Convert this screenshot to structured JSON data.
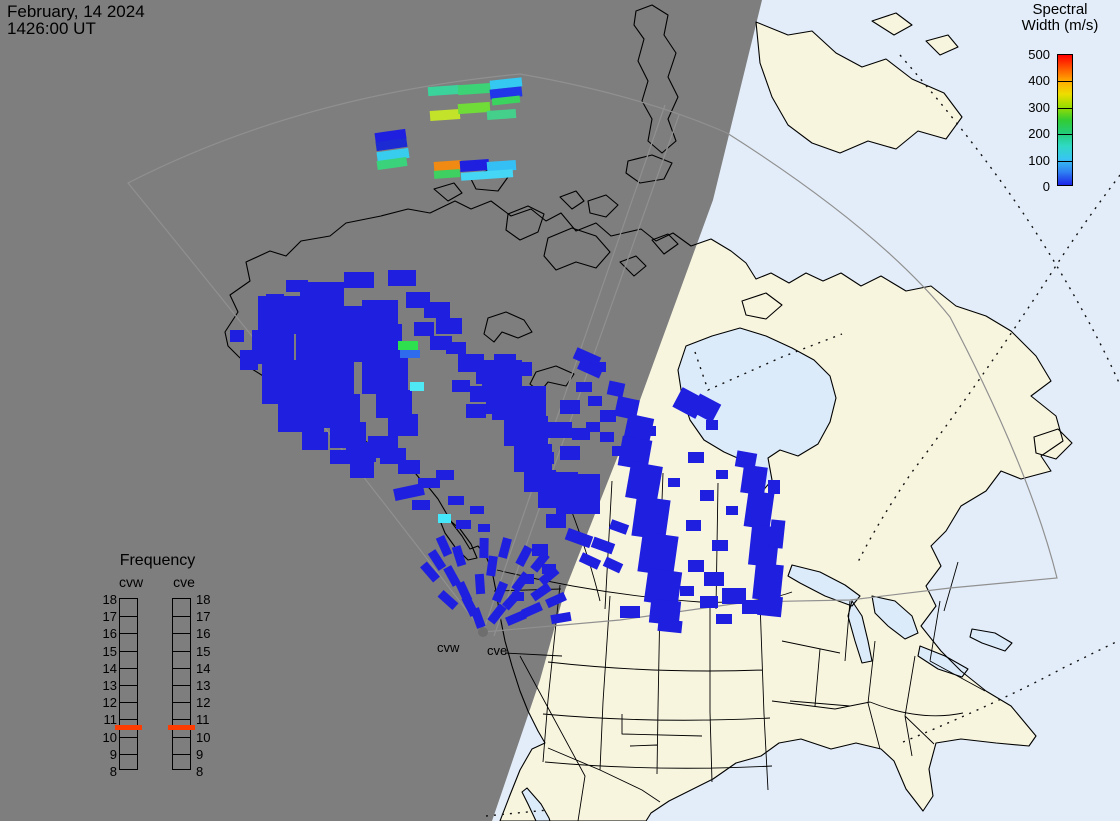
{
  "header": {
    "date": "February, 14 2024",
    "time": "1426:00 UT"
  },
  "colorbar": {
    "title_line1": "Spectral",
    "title_line2": "Width (m/s)",
    "ticks": [
      "500",
      "400",
      "300",
      "200",
      "100",
      "0"
    ],
    "gradient": [
      "#ff0000",
      "#ff5500",
      "#ffaa00",
      "#eedd00",
      "#99dd00",
      "#33cc33",
      "#22cc77",
      "#2fd9c4",
      "#38c4f2",
      "#2f80f2",
      "#1c24e8"
    ]
  },
  "frequency_panel": {
    "title": "Frequency",
    "left_label": "cvw",
    "right_label": "cve",
    "ticks": [
      "18",
      "17",
      "16",
      "15",
      "14",
      "13",
      "12",
      "11",
      "10",
      "9",
      "8"
    ],
    "marker_between": [
      "11",
      "10"
    ],
    "marker_color": "#ff3c00"
  },
  "map_labels": {
    "radar_left": "cvw",
    "radar_right": "cve"
  },
  "colors": {
    "night_shade": "#7e7e7e",
    "day_land": "#f8f5df",
    "day_water": "#e3edf9",
    "lake_water": "#dcebfa",
    "echo_blue": "#1f1fe0",
    "fov_line": "#909090",
    "radar_dot": "#6e6e6e"
  },
  "chart_data": {
    "type": "heatmap",
    "title": "SuperDARN spectral width map, radars cvw / cve",
    "units": "m/s",
    "value_scale": {
      "min": 0,
      "max": 500
    },
    "cell_format": "x,y,w,h,rotation_deg,color(optional; default echo_blue)",
    "cells": [
      [
        428,
        86,
        32,
        9,
        -4,
        "#3bd39b"
      ],
      [
        458,
        84,
        34,
        10,
        -4,
        "#3cd276"
      ],
      [
        490,
        79,
        32,
        9,
        -6,
        "#35c8f0"
      ],
      [
        490,
        88,
        32,
        10,
        -6,
        "#2136e8"
      ],
      [
        492,
        97,
        28,
        7,
        -6,
        "#3bd45e"
      ],
      [
        430,
        110,
        30,
        10,
        -4,
        "#c3e32a"
      ],
      [
        458,
        103,
        32,
        10,
        -4,
        "#6fdc38"
      ],
      [
        487,
        110,
        29,
        9,
        -4,
        "#44d08a"
      ],
      [
        375,
        131,
        31,
        10,
        -8
      ],
      [
        376,
        140,
        31,
        9,
        -8,
        "#1b2ad2"
      ],
      [
        377,
        150,
        32,
        10,
        -8,
        "#38cdee"
      ],
      [
        377,
        159,
        30,
        9,
        -8,
        "#3bd27c"
      ],
      [
        434,
        161,
        27,
        10,
        -4,
        "#f08a12"
      ],
      [
        434,
        170,
        26,
        8,
        -4,
        "#3ed060"
      ],
      [
        460,
        160,
        29,
        11,
        -4
      ],
      [
        487,
        161,
        29,
        10,
        -4,
        "#35c0f5"
      ],
      [
        461,
        171,
        52,
        8,
        -4,
        "#45d5f5"
      ],
      [
        258,
        296,
        52,
        38
      ],
      [
        252,
        330,
        42,
        34
      ],
      [
        262,
        360,
        54,
        44
      ],
      [
        278,
        398,
        46,
        34
      ],
      [
        300,
        282,
        44,
        26
      ],
      [
        296,
        306,
        66,
        56
      ],
      [
        300,
        358,
        54,
        40
      ],
      [
        316,
        394,
        44,
        34
      ],
      [
        330,
        422,
        36,
        26
      ],
      [
        346,
        442,
        30,
        20
      ],
      [
        362,
        300,
        36,
        24
      ],
      [
        352,
        324,
        50,
        38
      ],
      [
        362,
        358,
        46,
        36
      ],
      [
        376,
        390,
        36,
        28
      ],
      [
        388,
        414,
        30,
        22
      ],
      [
        368,
        436,
        30,
        22
      ],
      [
        388,
        270,
        28,
        16
      ],
      [
        344,
        272,
        30,
        16
      ],
      [
        406,
        292,
        24,
        16
      ],
      [
        424,
        302,
        26,
        16
      ],
      [
        414,
        322,
        20,
        14
      ],
      [
        436,
        318,
        26,
        16
      ],
      [
        430,
        336,
        22,
        14
      ],
      [
        446,
        342,
        20,
        12
      ],
      [
        380,
        448,
        26,
        16
      ],
      [
        398,
        460,
        22,
        14
      ],
      [
        350,
        462,
        24,
        16
      ],
      [
        330,
        450,
        22,
        14
      ],
      [
        302,
        432,
        26,
        18
      ],
      [
        286,
        280,
        22,
        12
      ],
      [
        240,
        350,
        18,
        20
      ],
      [
        266,
        294,
        18,
        12
      ],
      [
        230,
        330,
        14,
        12
      ],
      [
        398,
        341,
        20,
        9,
        0,
        "#2ee04e"
      ],
      [
        400,
        350,
        20,
        8,
        0,
        "#2f6bed"
      ],
      [
        410,
        382,
        14,
        9,
        0,
        "#4fe9f5"
      ],
      [
        458,
        354,
        26,
        18
      ],
      [
        476,
        362,
        30,
        22
      ],
      [
        494,
        354,
        22,
        16
      ],
      [
        470,
        386,
        24,
        16
      ],
      [
        490,
        382,
        20,
        14
      ],
      [
        452,
        380,
        18,
        12
      ],
      [
        466,
        404,
        20,
        14
      ],
      [
        486,
        402,
        18,
        12
      ],
      [
        502,
        396,
        16,
        12
      ],
      [
        512,
        362,
        20,
        14
      ],
      [
        524,
        434,
        22,
        14
      ],
      [
        536,
        452,
        18,
        12
      ],
      [
        482,
        360,
        40,
        26
      ],
      [
        492,
        386,
        54,
        34
      ],
      [
        504,
        416,
        44,
        30
      ],
      [
        514,
        444,
        38,
        28
      ],
      [
        524,
        470,
        32,
        22
      ],
      [
        538,
        490,
        26,
        18
      ],
      [
        556,
        472,
        22,
        16
      ],
      [
        560,
        446,
        20,
        14
      ],
      [
        572,
        428,
        18,
        12
      ],
      [
        548,
        422,
        24,
        16
      ],
      [
        560,
        400,
        20,
        14
      ],
      [
        576,
        382,
        16,
        10
      ],
      [
        588,
        396,
        14,
        10
      ],
      [
        600,
        410,
        16,
        12
      ],
      [
        586,
        422,
        14,
        10
      ],
      [
        600,
        432,
        14,
        10
      ],
      [
        612,
        446,
        12,
        10
      ],
      [
        590,
        362,
        16,
        10
      ],
      [
        574,
        352,
        26,
        12,
        24
      ],
      [
        578,
        364,
        24,
        10,
        24
      ],
      [
        394,
        486,
        30,
        12,
        -12
      ],
      [
        418,
        478,
        22,
        10
      ],
      [
        436,
        470,
        18,
        10
      ],
      [
        412,
        500,
        18,
        10
      ],
      [
        448,
        496,
        16,
        9
      ],
      [
        438,
        514,
        13,
        9,
        0,
        "#45e8fa"
      ],
      [
        456,
        520,
        15,
        9
      ],
      [
        470,
        506,
        14,
        8
      ],
      [
        478,
        524,
        12,
        8
      ],
      [
        556,
        474,
        44,
        40
      ],
      [
        546,
        514,
        20,
        14
      ],
      [
        532,
        544,
        16,
        12
      ],
      [
        542,
        564,
        14,
        10
      ],
      [
        522,
        574,
        12,
        10
      ],
      [
        512,
        592,
        12,
        9
      ],
      [
        566,
        532,
        26,
        12,
        20
      ],
      [
        592,
        540,
        22,
        11,
        20
      ],
      [
        610,
        522,
        18,
        10,
        20
      ],
      [
        580,
        556,
        20,
        10,
        25
      ],
      [
        604,
        560,
        18,
        10,
        25
      ],
      [
        608,
        382,
        16,
        14,
        12
      ],
      [
        616,
        398,
        22,
        20,
        12
      ],
      [
        626,
        416,
        26,
        24,
        12
      ],
      [
        620,
        438,
        30,
        30,
        10
      ],
      [
        628,
        464,
        32,
        36,
        10
      ],
      [
        634,
        498,
        34,
        40,
        8
      ],
      [
        640,
        534,
        36,
        40,
        8
      ],
      [
        646,
        570,
        34,
        34,
        8
      ],
      [
        650,
        600,
        30,
        24,
        6
      ],
      [
        658,
        620,
        24,
        12,
        6
      ],
      [
        640,
        426,
        16,
        10
      ],
      [
        620,
        606,
        20,
        12
      ],
      [
        736,
        452,
        20,
        16,
        10
      ],
      [
        742,
        466,
        24,
        28,
        8
      ],
      [
        746,
        492,
        26,
        36,
        8
      ],
      [
        750,
        526,
        28,
        40,
        6
      ],
      [
        754,
        564,
        28,
        36,
        6
      ],
      [
        758,
        596,
        24,
        20,
        6
      ],
      [
        770,
        520,
        14,
        28,
        6
      ],
      [
        768,
        480,
        12,
        14
      ],
      [
        688,
        560,
        16,
        12
      ],
      [
        704,
        572,
        20,
        14
      ],
      [
        722,
        588,
        24,
        16
      ],
      [
        742,
        600,
        20,
        14
      ],
      [
        700,
        596,
        18,
        12
      ],
      [
        680,
        586,
        14,
        10
      ],
      [
        716,
        614,
        16,
        10
      ],
      [
        688,
        452,
        16,
        11
      ],
      [
        700,
        490,
        14,
        11
      ],
      [
        686,
        520,
        15,
        11
      ],
      [
        712,
        540,
        16,
        11
      ],
      [
        668,
        478,
        12,
        9
      ],
      [
        716,
        470,
        12,
        9
      ],
      [
        726,
        506,
        12,
        9
      ],
      [
        694,
        398,
        24,
        20,
        28
      ],
      [
        706,
        420,
        12,
        10
      ],
      [
        676,
        392,
        26,
        22,
        28
      ]
    ],
    "fan_streak_format": "x,y,rotation_deg (size 9x20, echo_blue)",
    "fan_streaks": [
      [
        437,
        560,
        -33
      ],
      [
        452,
        576,
        -29
      ],
      [
        464,
        592,
        -25
      ],
      [
        448,
        600,
        -48
      ],
      [
        470,
        606,
        -27
      ],
      [
        480,
        584,
        -4
      ],
      [
        492,
        566,
        8
      ],
      [
        500,
        592,
        23
      ],
      [
        478,
        618,
        -20
      ],
      [
        497,
        614,
        38
      ],
      [
        512,
        600,
        42
      ],
      [
        521,
        582,
        37
      ],
      [
        516,
        618,
        67
      ],
      [
        532,
        610,
        66
      ],
      [
        541,
        592,
        55
      ],
      [
        549,
        576,
        50
      ],
      [
        556,
        600,
        66
      ],
      [
        561,
        618,
        80
      ],
      [
        444,
        546,
        -24
      ],
      [
        484,
        548,
        1
      ],
      [
        505,
        548,
        15
      ],
      [
        524,
        556,
        28
      ],
      [
        540,
        562,
        39
      ],
      [
        430,
        572,
        -41
      ],
      [
        459,
        556,
        -17
      ]
    ]
  }
}
